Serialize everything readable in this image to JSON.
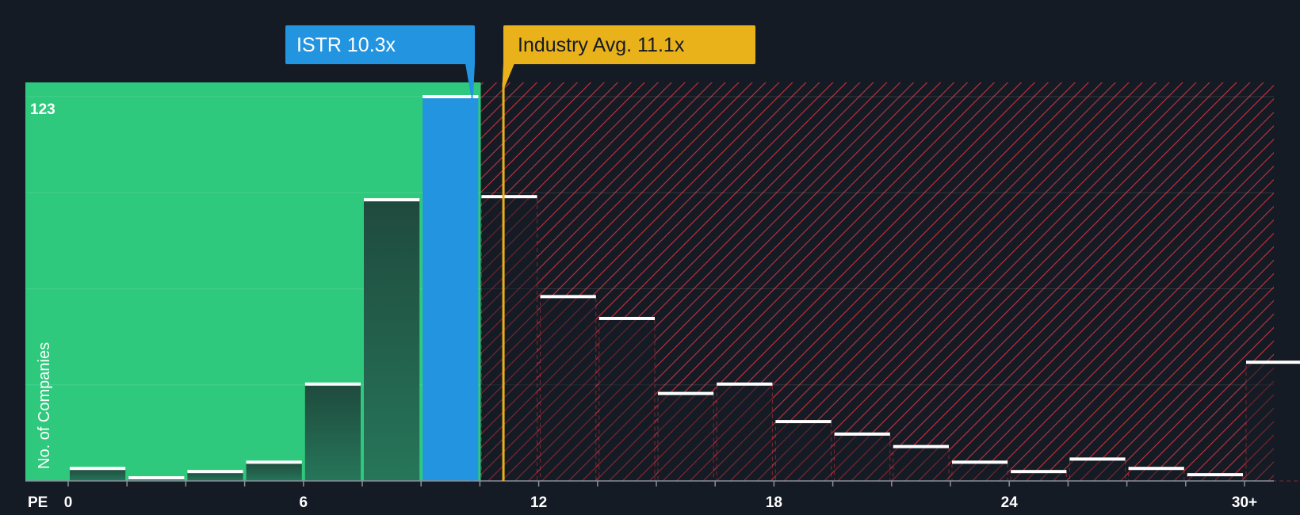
{
  "chart_data": {
    "type": "bar",
    "title": "",
    "xlabel": "PE",
    "ylabel": "No. of Companies",
    "x_ticks": [
      "0",
      "6",
      "12",
      "18",
      "24",
      "30+"
    ],
    "tick_values": [
      0,
      6,
      12,
      18,
      24,
      30
    ],
    "xlim": [
      0,
      30.8
    ],
    "ylim": [
      0,
      127
    ],
    "max_label": "123",
    "bin_width": 1.5,
    "bins": [
      {
        "x": 0.0,
        "value": 4
      },
      {
        "x": 1.5,
        "value": 1
      },
      {
        "x": 3.0,
        "value": 3
      },
      {
        "x": 4.5,
        "value": 6
      },
      {
        "x": 6.0,
        "value": 31
      },
      {
        "x": 7.5,
        "value": 90
      },
      {
        "x": 9.0,
        "value": 123,
        "highlight": true
      },
      {
        "x": 10.5,
        "value": 91
      },
      {
        "x": 12.0,
        "value": 59
      },
      {
        "x": 13.5,
        "value": 52
      },
      {
        "x": 15.0,
        "value": 28
      },
      {
        "x": 16.5,
        "value": 31
      },
      {
        "x": 18.0,
        "value": 19
      },
      {
        "x": 19.5,
        "value": 15
      },
      {
        "x": 21.0,
        "value": 11
      },
      {
        "x": 22.5,
        "value": 6
      },
      {
        "x": 24.0,
        "value": 3
      },
      {
        "x": 25.5,
        "value": 7
      },
      {
        "x": 27.0,
        "value": 4
      },
      {
        "x": 28.5,
        "value": 2
      },
      {
        "x": 30.0,
        "value": 38
      }
    ],
    "company": {
      "label": "ISTR 10.3x",
      "value": 10.3
    },
    "industry_avg": {
      "label": "Industry Avg. 11.1x",
      "value": 11.1
    },
    "colors": {
      "background": "#151b24",
      "fair_zone": "#2ec97d",
      "company": "#2394e0",
      "industry": "#e9b21b",
      "hatch": "#c8313a",
      "bar_cap": "#ffffff"
    }
  }
}
